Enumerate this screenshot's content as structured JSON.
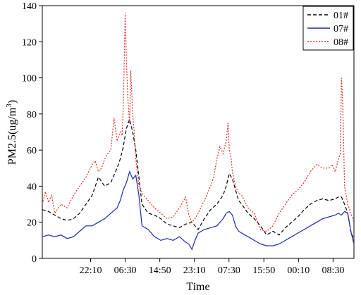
{
  "chart_data": {
    "type": "line",
    "xlabel": "Time",
    "ylabel": "PM2.5(ug/m3)",
    "ylabel_base": "PM2.5(ug/m",
    "ylabel_sup": "3",
    "ylabel_close": ")",
    "ylim": [
      0,
      140
    ],
    "yticks": [
      0,
      20,
      40,
      60,
      80,
      100,
      120,
      140
    ],
    "xlim": [
      0,
      100
    ],
    "xticks": [
      {
        "x": 15.5,
        "label": "22:10"
      },
      {
        "x": 26.6,
        "label": "06:30"
      },
      {
        "x": 37.7,
        "label": "14:50"
      },
      {
        "x": 48.8,
        "label": "23:10"
      },
      {
        "x": 59.9,
        "label": "07:30"
      },
      {
        "x": 71.1,
        "label": "15:50"
      },
      {
        "x": 82.2,
        "label": "00:10"
      },
      {
        "x": 93.3,
        "label": "08:30"
      }
    ],
    "legend_position": "top-right",
    "grid": false,
    "series": [
      {
        "name": "01#",
        "color": "#000000",
        "dash": "5,3",
        "x": [
          0,
          2,
          4,
          6,
          8,
          10,
          12,
          14,
          16,
          18,
          20,
          22,
          24,
          25,
          26,
          27,
          28,
          29,
          30,
          32,
          34,
          36,
          38,
          40,
          42,
          44,
          46,
          48,
          50,
          52,
          54,
          56,
          58,
          59,
          60,
          61,
          62,
          63,
          64,
          66,
          68,
          70,
          72,
          74,
          76,
          78,
          80,
          82,
          84,
          86,
          88,
          90,
          92,
          94,
          95,
          96,
          97,
          98,
          99,
          100
        ],
        "y": [
          27,
          26,
          24,
          22,
          21,
          22,
          25,
          30,
          35,
          45,
          40,
          42,
          50,
          55,
          62,
          72,
          77,
          70,
          60,
          30,
          25,
          24,
          22,
          19,
          18,
          17,
          19,
          20,
          16,
          22,
          27,
          30,
          35,
          40,
          47,
          44,
          38,
          32,
          30,
          25,
          22,
          18,
          13,
          15,
          13,
          17,
          20,
          23,
          27,
          30,
          32,
          33,
          32,
          33,
          34,
          34,
          30,
          25,
          15,
          10
        ]
      },
      {
        "name": "07#",
        "color": "#1c2aa8",
        "dash": "",
        "x": [
          0,
          2,
          4,
          6,
          8,
          10,
          12,
          14,
          16,
          18,
          20,
          22,
          24,
          25,
          26,
          27,
          28,
          29,
          30,
          31,
          32,
          34,
          36,
          38,
          40,
          42,
          44,
          46,
          47,
          48,
          49,
          50,
          52,
          54,
          56,
          58,
          59,
          60,
          61,
          62,
          63,
          64,
          66,
          68,
          70,
          72,
          74,
          76,
          78,
          80,
          82,
          84,
          86,
          88,
          90,
          92,
          94,
          95,
          96,
          97,
          98,
          99,
          100
        ],
        "y": [
          12,
          13,
          12,
          13,
          11,
          12,
          15,
          18,
          18,
          20,
          22,
          25,
          28,
          32,
          38,
          42,
          48,
          44,
          46,
          35,
          18,
          16,
          12,
          10,
          11,
          10,
          12,
          9,
          8,
          5,
          10,
          14,
          16,
          17,
          18,
          22,
          25,
          26,
          24,
          18,
          15,
          14,
          12,
          10,
          8,
          7,
          7,
          8,
          10,
          12,
          14,
          16,
          18,
          20,
          22,
          23,
          24,
          25,
          24,
          26,
          25,
          15,
          8
        ]
      },
      {
        "name": "08#",
        "color": "#e8312a",
        "dash": "2,2",
        "x": [
          0,
          1,
          2,
          3,
          4,
          6,
          8,
          10,
          12,
          14,
          16,
          17,
          18,
          19,
          20,
          21,
          22,
          23,
          24,
          25,
          25.6,
          26,
          26.6,
          27,
          27.4,
          28,
          28.4,
          29,
          29.4,
          30,
          31,
          32,
          34,
          36,
          38,
          40,
          42,
          44,
          46,
          47,
          48,
          49,
          50,
          52,
          54,
          55,
          56,
          57,
          58,
          59,
          59.6,
          60,
          60.6,
          61,
          62,
          63,
          64,
          66,
          68,
          70,
          72,
          74,
          76,
          78,
          80,
          82,
          84,
          86,
          88,
          90,
          92,
          93,
          94,
          95,
          95.6,
          96,
          96.4,
          97,
          98,
          99,
          100
        ],
        "y": [
          30,
          37,
          31,
          35,
          25,
          30,
          28,
          35,
          40,
          45,
          52,
          54,
          48,
          50,
          55,
          58,
          60,
          78,
          65,
          70,
          68,
          85,
          136,
          110,
          90,
          75,
          104,
          80,
          72,
          55,
          40,
          36,
          32,
          28,
          25,
          22,
          23,
          28,
          34,
          24,
          20,
          22,
          25,
          32,
          40,
          45,
          55,
          62,
          58,
          65,
          75,
          60,
          55,
          48,
          40,
          36,
          35,
          28,
          25,
          16,
          15,
          18,
          25,
          30,
          35,
          38,
          42,
          48,
          52,
          50,
          50,
          52,
          48,
          55,
          58,
          100,
          85,
          40,
          30,
          25,
          20
        ]
      }
    ]
  }
}
